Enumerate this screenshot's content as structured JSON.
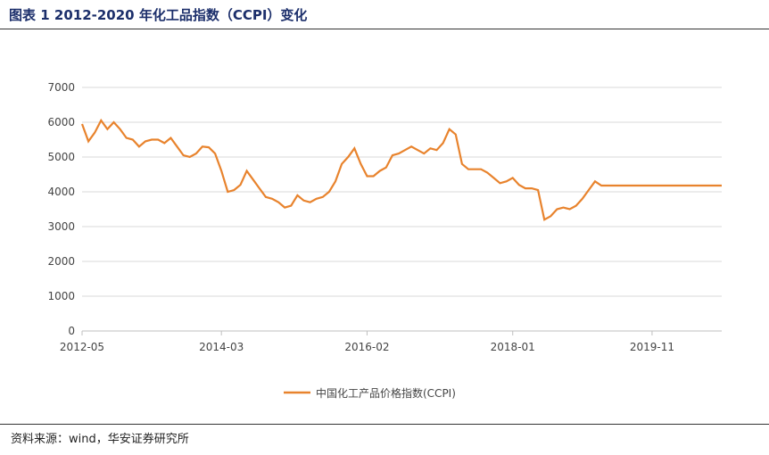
{
  "header": {
    "title": "图表 1 2012-2020 年化工品指数（CCPI）变化"
  },
  "footer": {
    "source": "资料来源：wind，华安证券研究所"
  },
  "chart_data": {
    "type": "line",
    "title": "",
    "xlabel": "",
    "ylabel": "",
    "ylim": [
      0,
      7000
    ],
    "yticks": [
      0,
      1000,
      2000,
      3000,
      4000,
      5000,
      6000,
      7000
    ],
    "xticks": [
      "2012-05",
      "2014-03",
      "2016-02",
      "2018-01",
      "2019-11"
    ],
    "grid": true,
    "legend_position": "bottom",
    "series_color": "#e8832d",
    "series": [
      {
        "name": "中国化工产品价格指数(CCPI)",
        "x": [
          "2012-05",
          "2012-06",
          "2012-07",
          "2012-08",
          "2012-09",
          "2012-10",
          "2012-11",
          "2012-12",
          "2013-01",
          "2013-02",
          "2013-03",
          "2013-04",
          "2013-05",
          "2013-06",
          "2013-07",
          "2013-08",
          "2013-09",
          "2013-10",
          "2013-11",
          "2013-12",
          "2014-01",
          "2014-02",
          "2014-03",
          "2014-04",
          "2014-05",
          "2014-06",
          "2014-07",
          "2014-08",
          "2014-09",
          "2014-10",
          "2014-11",
          "2014-12",
          "2015-01",
          "2015-02",
          "2015-03",
          "2015-04",
          "2015-05",
          "2015-06",
          "2015-07",
          "2015-08",
          "2015-09",
          "2015-10",
          "2015-11",
          "2015-12",
          "2016-01",
          "2016-02",
          "2016-03",
          "2016-04",
          "2016-05",
          "2016-06",
          "2016-07",
          "2016-08",
          "2016-09",
          "2016-10",
          "2016-11",
          "2016-12",
          "2017-01",
          "2017-02",
          "2017-03",
          "2017-04",
          "2017-05",
          "2017-06",
          "2017-07",
          "2017-08",
          "2017-09",
          "2017-10",
          "2017-11",
          "2017-12",
          "2018-01",
          "2018-02",
          "2018-03",
          "2018-04",
          "2018-05",
          "2018-06",
          "2018-07",
          "2018-08",
          "2018-09",
          "2018-10",
          "2018-11",
          "2018-12",
          "2019-01",
          "2019-02",
          "2019-03",
          "2019-04",
          "2019-05",
          "2019-06",
          "2019-07",
          "2019-08",
          "2019-09",
          "2019-10",
          "2019-11",
          "2019-12",
          "2020-01",
          "2020-02",
          "2020-03",
          "2020-04",
          "2020-05",
          "2020-06",
          "2020-07",
          "2020-08",
          "2020-09",
          "2020-10"
        ],
        "values": [
          5950,
          5450,
          5700,
          6050,
          5800,
          6000,
          5800,
          5550,
          5500,
          5300,
          5450,
          5500,
          5500,
          5400,
          5550,
          5300,
          5050,
          5000,
          5100,
          5300,
          5280,
          5100,
          4600,
          4000,
          4050,
          4200,
          4600,
          4350,
          4100,
          3850,
          3800,
          3700,
          3550,
          3600,
          3900,
          3750,
          3700,
          3800,
          3850,
          4000,
          4300,
          4800,
          5000,
          5250,
          4800,
          4450,
          4450,
          4600,
          4700,
          5050,
          5100,
          5200,
          5300,
          5200,
          5100,
          5250,
          5200,
          5400,
          5800,
          5650,
          4800,
          4650,
          4650,
          4650,
          4550,
          4400,
          4250,
          4300,
          4400,
          4200,
          4100,
          4100,
          4050,
          3200,
          3300,
          3500,
          3550,
          3500,
          3600,
          3800,
          4050,
          4300,
          4180,
          4180,
          4180,
          4180,
          4180,
          4180,
          4180,
          4180,
          4180,
          4180,
          4180,
          4180,
          4180,
          4180,
          4180,
          4180,
          4180,
          4180,
          4180,
          4180
        ]
      }
    ]
  }
}
